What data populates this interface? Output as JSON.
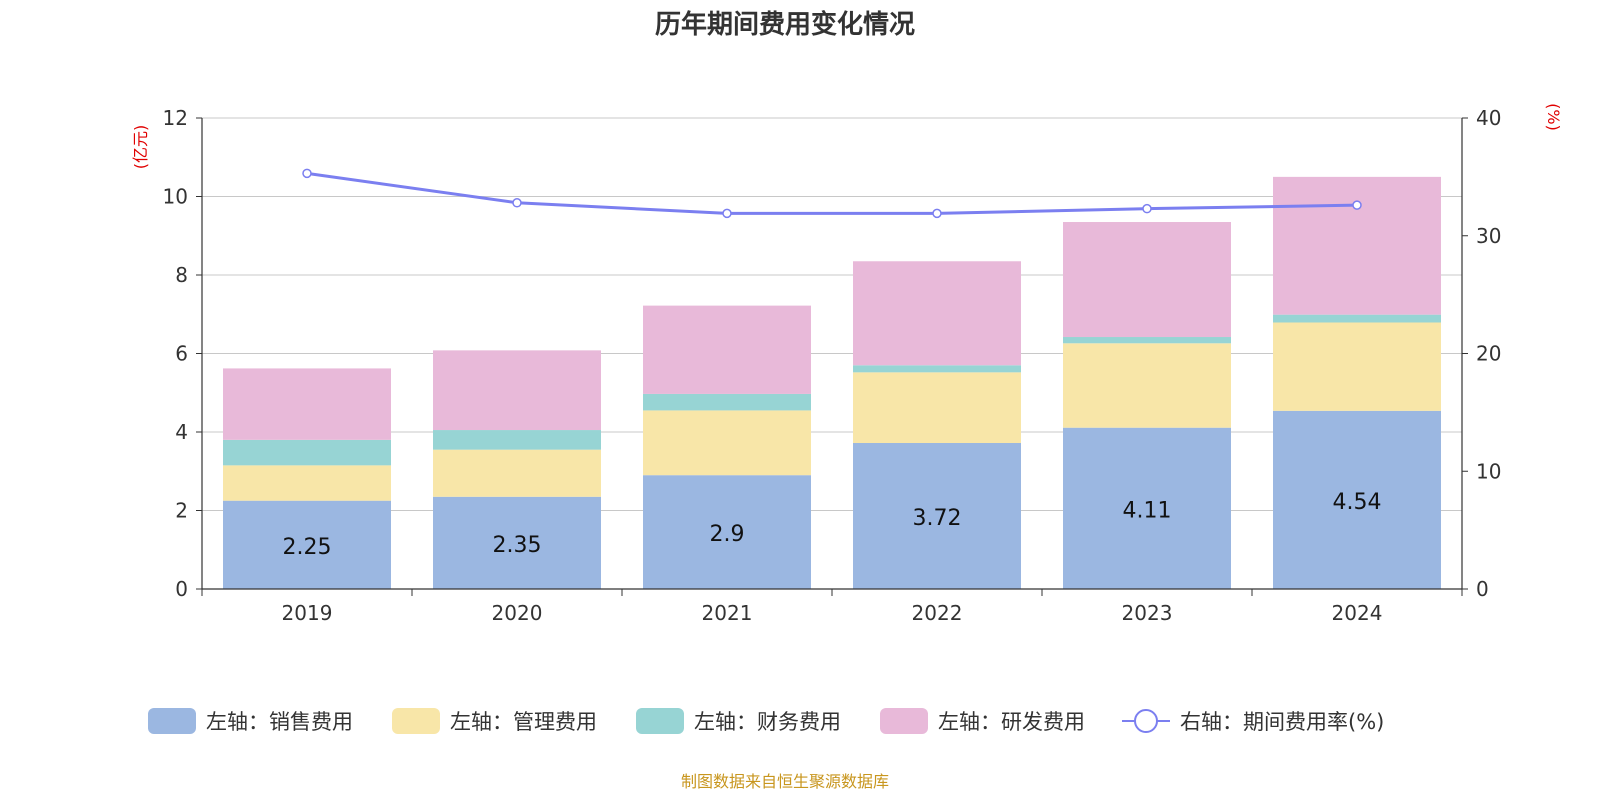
{
  "chart_data": {
    "type": "bar",
    "title": "历年期间费用变化情况",
    "categories": [
      "2019",
      "2020",
      "2021",
      "2022",
      "2023",
      "2024"
    ],
    "series": [
      {
        "name": "左轴：销售费用",
        "axis": "left",
        "color": "#9bb7e1",
        "values": [
          2.25,
          2.35,
          2.9,
          3.72,
          4.11,
          4.54
        ],
        "labels_shown": true
      },
      {
        "name": "左轴：管理费用",
        "axis": "left",
        "color": "#f8e6a8",
        "values": [
          0.9,
          1.2,
          1.65,
          1.8,
          2.15,
          2.25
        ]
      },
      {
        "name": "左轴：财务费用",
        "axis": "left",
        "color": "#97d4d4",
        "values": [
          0.65,
          0.5,
          0.42,
          0.18,
          0.16,
          0.2
        ]
      },
      {
        "name": "左轴：研发费用",
        "axis": "left",
        "color": "#e8b9d9",
        "values": [
          1.82,
          2.03,
          2.25,
          2.65,
          2.93,
          3.51
        ]
      },
      {
        "name": "右轴：期间费用率(%)",
        "axis": "right",
        "type": "line",
        "color": "#7b7ff0",
        "values": [
          35.3,
          32.8,
          31.9,
          31.9,
          32.3,
          32.6
        ]
      }
    ],
    "y_left": {
      "unit": "(亿元)",
      "ylim": [
        0,
        12
      ],
      "ticks": [
        "0",
        "2",
        "4",
        "6",
        "8",
        "10",
        "12"
      ]
    },
    "y_right": {
      "unit": "(%)",
      "ylim": [
        0,
        40
      ],
      "ticks": [
        "0",
        "10",
        "20",
        "30",
        "40"
      ]
    },
    "grid": true,
    "legend_position": "bottom"
  },
  "source": "制图数据来自恒生聚源数据库"
}
